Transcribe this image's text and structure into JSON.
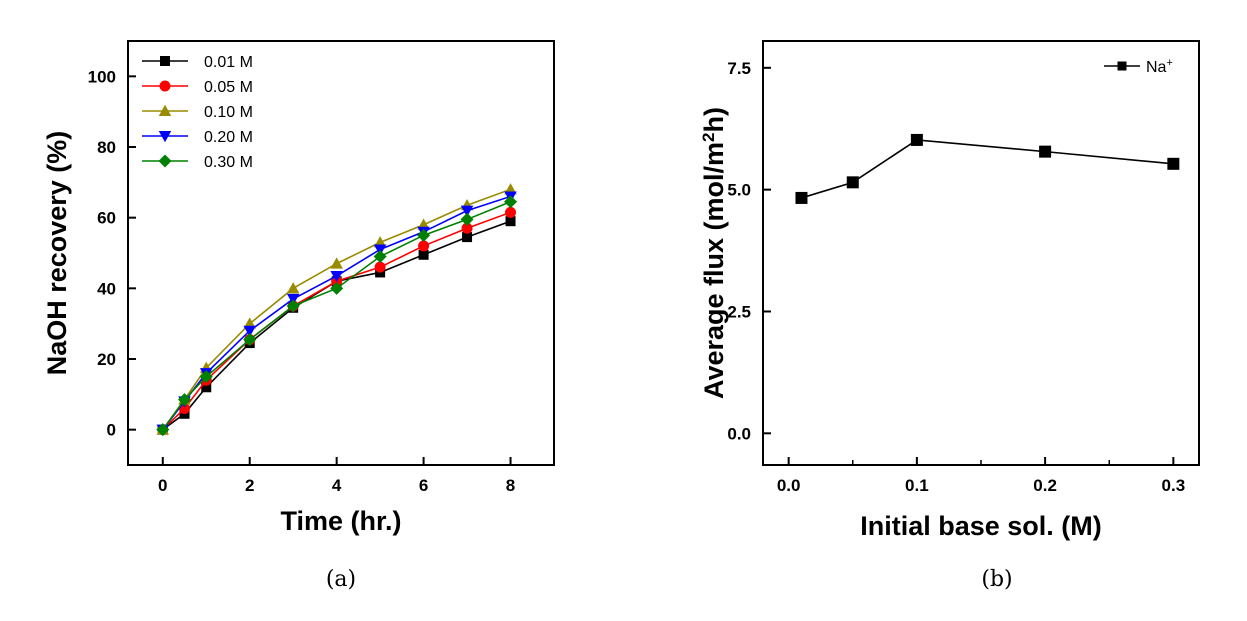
{
  "chart_data": [
    {
      "type": "line",
      "panel_label": "(a)",
      "xlabel": "Time (hr.)",
      "ylabel": "NaOH recovery (%)",
      "xlim": [
        -0.8,
        9.0
      ],
      "ylim": [
        -10,
        110
      ],
      "xticks": [
        0,
        2,
        4,
        6,
        8
      ],
      "yticks": [
        0,
        20,
        40,
        60,
        80,
        100
      ],
      "x": [
        0,
        0.5,
        1,
        2,
        3,
        4,
        5,
        6,
        7,
        8
      ],
      "legend_position": "top-left",
      "series": [
        {
          "name": "0.01 M",
          "color": "#000000",
          "marker": "square",
          "values": [
            0,
            4.5,
            12,
            24.5,
            34.5,
            42,
            44.5,
            49.5,
            54.5,
            59
          ]
        },
        {
          "name": "0.05 M",
          "color": "#ff0000",
          "marker": "circle",
          "values": [
            0,
            6,
            14,
            25.5,
            35,
            42,
            46,
            52,
            57,
            61.5
          ]
        },
        {
          "name": "0.10 M",
          "color": "#9a8a00",
          "marker": "triangle-up",
          "values": [
            0,
            8.5,
            17.5,
            30,
            40,
            47,
            53,
            58,
            63.5,
            68
          ]
        },
        {
          "name": "0.20 M",
          "color": "#0000ff",
          "marker": "triangle-down",
          "values": [
            0,
            8,
            16,
            28,
            37,
            43.5,
            51,
            56,
            62,
            66
          ]
        },
        {
          "name": "0.30 M",
          "color": "#008000",
          "marker": "diamond",
          "values": [
            0,
            8.5,
            15,
            25.5,
            35,
            40,
            49,
            55,
            59.5,
            64.5
          ]
        }
      ]
    },
    {
      "type": "line",
      "panel_label": "(b)",
      "xlabel": "Initial base sol. (M)",
      "ylabel": "Average flux (mol/m²h)",
      "ylabel_parts": [
        "Average flux (mol/m",
        "2",
        "h)"
      ],
      "xlim": [
        -0.02,
        0.32
      ],
      "ylim": [
        -0.65,
        8.05
      ],
      "xticks": [
        "0.0",
        "0.1",
        "0.2",
        "0.3"
      ],
      "yticks": [
        "0.0",
        "2.5",
        "5.0",
        "7.5"
      ],
      "legend_position": "top-right",
      "series": [
        {
          "name": "Na⁺",
          "name_parts": [
            "Na",
            "+"
          ],
          "color": "#000000",
          "marker": "square",
          "x": [
            0.01,
            0.05,
            0.1,
            0.2,
            0.3
          ],
          "values": [
            4.83,
            5.15,
            6.02,
            5.78,
            5.53
          ]
        }
      ]
    }
  ]
}
